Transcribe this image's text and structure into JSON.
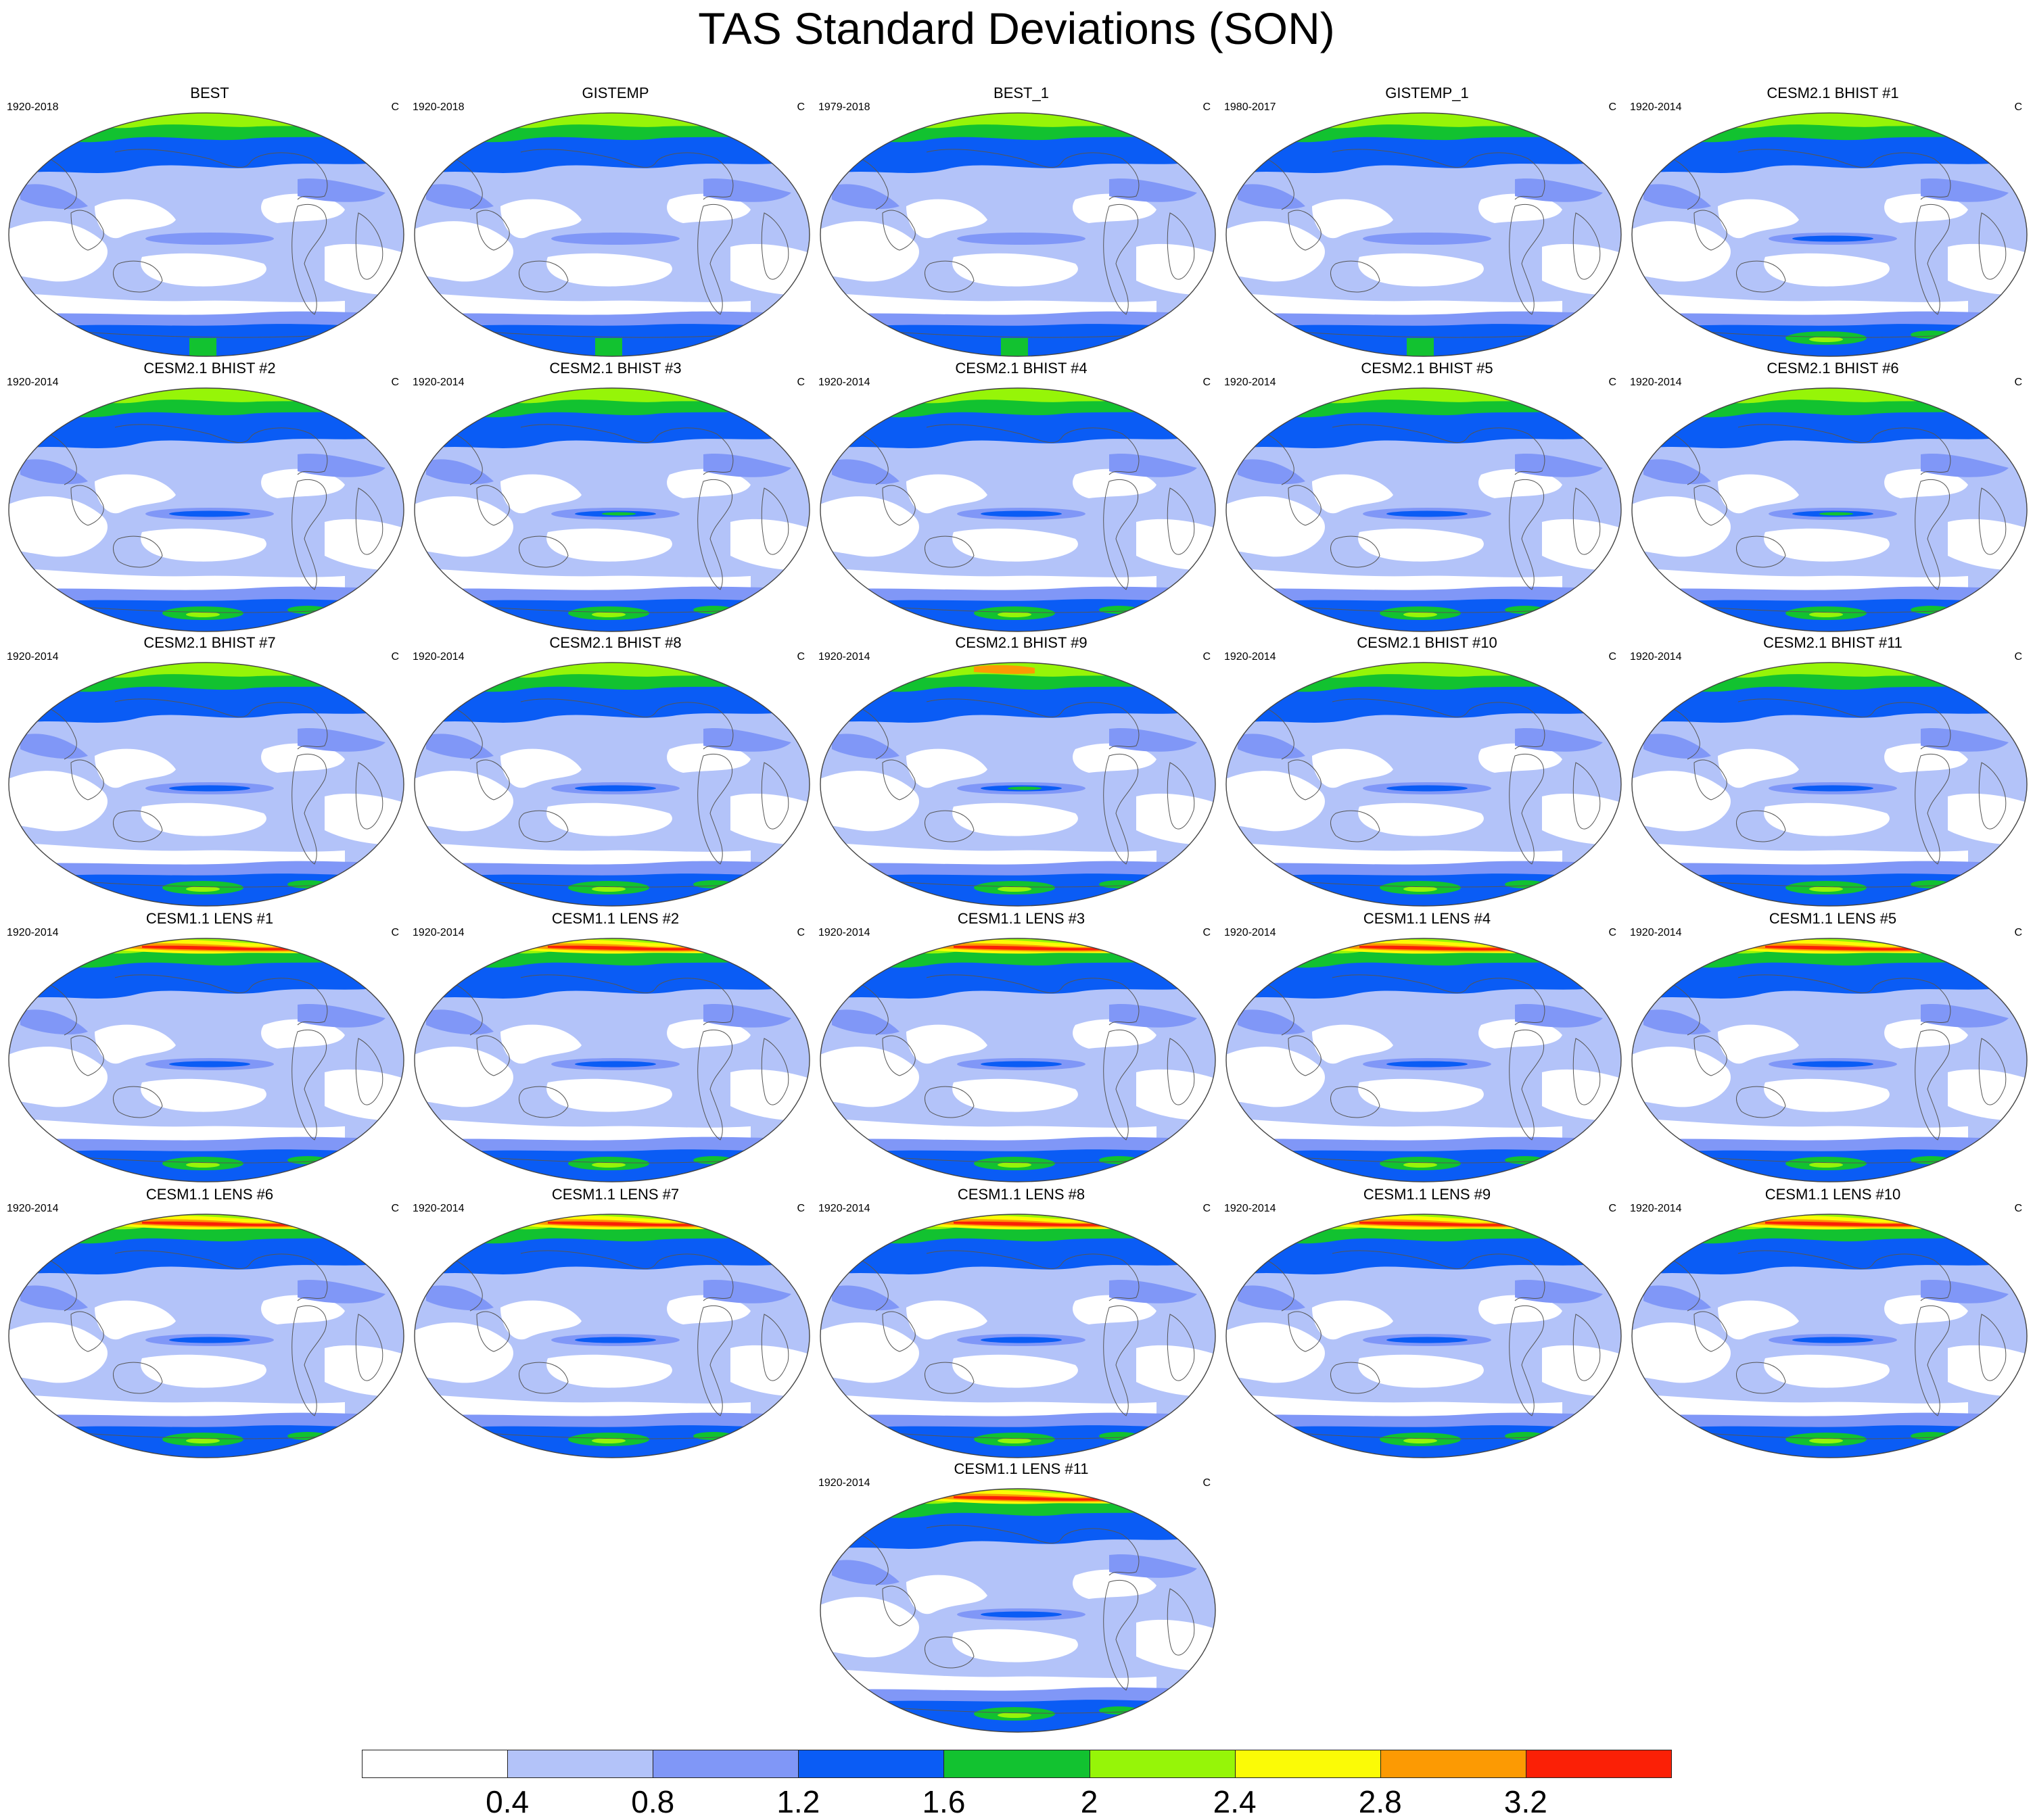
{
  "figure": {
    "title": "TAS Standard Deviations (SON)",
    "unit": "C"
  },
  "panels": [
    {
      "title": "BEST",
      "period": "1920-2018",
      "kind": "obs"
    },
    {
      "title": "GISTEMP",
      "period": "1920-2018",
      "kind": "obs"
    },
    {
      "title": "BEST_1",
      "period": "1979-2018",
      "kind": "obs"
    },
    {
      "title": "GISTEMP_1",
      "period": "1980-2017",
      "kind": "obs"
    },
    {
      "title": "CESM2.1 BHIST #1",
      "period": "1920-2014",
      "kind": "cesm2"
    },
    {
      "title": "CESM2.1 BHIST #2",
      "period": "1920-2014",
      "kind": "cesm2"
    },
    {
      "title": "CESM2.1 BHIST #3",
      "period": "1920-2014",
      "kind": "cesm2"
    },
    {
      "title": "CESM2.1 BHIST #4",
      "period": "1920-2014",
      "kind": "cesm2"
    },
    {
      "title": "CESM2.1 BHIST #5",
      "period": "1920-2014",
      "kind": "cesm2"
    },
    {
      "title": "CESM2.1 BHIST #6",
      "period": "1920-2014",
      "kind": "cesm2"
    },
    {
      "title": "CESM2.1 BHIST #7",
      "period": "1920-2014",
      "kind": "cesm2"
    },
    {
      "title": "CESM2.1 BHIST #8",
      "period": "1920-2014",
      "kind": "cesm2"
    },
    {
      "title": "CESM2.1 BHIST #9",
      "period": "1920-2014",
      "kind": "cesm2"
    },
    {
      "title": "CESM2.1 BHIST #10",
      "period": "1920-2014",
      "kind": "cesm2"
    },
    {
      "title": "CESM2.1 BHIST #11",
      "period": "1920-2014",
      "kind": "cesm2"
    },
    {
      "title": "CESM1.1 LENS #1",
      "period": "1920-2014",
      "kind": "cesm1"
    },
    {
      "title": "CESM1.1 LENS #2",
      "period": "1920-2014",
      "kind": "cesm1"
    },
    {
      "title": "CESM1.1 LENS #3",
      "period": "1920-2014",
      "kind": "cesm1"
    },
    {
      "title": "CESM1.1 LENS #4",
      "period": "1920-2014",
      "kind": "cesm1"
    },
    {
      "title": "CESM1.1 LENS #5",
      "period": "1920-2014",
      "kind": "cesm1"
    },
    {
      "title": "CESM1.1 LENS #6",
      "period": "1920-2014",
      "kind": "cesm1"
    },
    {
      "title": "CESM1.1 LENS #7",
      "period": "1920-2014",
      "kind": "cesm1"
    },
    {
      "title": "CESM1.1 LENS #8",
      "period": "1920-2014",
      "kind": "cesm1"
    },
    {
      "title": "CESM1.1 LENS #9",
      "period": "1920-2014",
      "kind": "cesm1"
    },
    {
      "title": "CESM1.1 LENS #10",
      "period": "1920-2014",
      "kind": "cesm1"
    },
    {
      "title": "CESM1.1 LENS #11",
      "period": "1920-2014",
      "kind": "cesm1"
    }
  ],
  "colorbar": {
    "colors": [
      "#ffffff",
      "#b3c3f9",
      "#8097f7",
      "#0a5cf5",
      "#12c230",
      "#96f508",
      "#fbfb06",
      "#fc9a03",
      "#fb2006"
    ],
    "labels": [
      "0.4",
      "0.8",
      "1.2",
      "1.6",
      "2",
      "2.4",
      "2.8",
      "3.2"
    ]
  }
}
